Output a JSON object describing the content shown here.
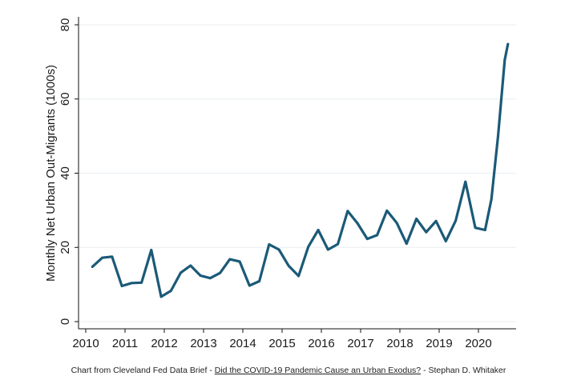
{
  "chart_data": {
    "type": "line",
    "title": "",
    "xlabel": "",
    "ylabel": "Monthly Net Urban Out-Migrants (1000s)",
    "xlim": [
      2010,
      2020.8
    ],
    "ylim": [
      0,
      80
    ],
    "xticks": [
      2010,
      2011,
      2012,
      2013,
      2014,
      2015,
      2016,
      2017,
      2018,
      2019,
      2020
    ],
    "yticks": [
      0,
      20,
      40,
      60,
      80
    ],
    "xtick_labels": [
      "2010",
      "2011",
      "2012",
      "2013",
      "2014",
      "2015",
      "2016",
      "2017",
      "2018",
      "2019",
      "2020"
    ],
    "ytick_labels": [
      "0",
      "20",
      "40",
      "60",
      "80"
    ],
    "grid": "horizontal",
    "line_color": "#1b5a78",
    "x": [
      2010.17,
      2010.42,
      2010.67,
      2010.92,
      2011.17,
      2011.42,
      2011.67,
      2011.92,
      2012.17,
      2012.42,
      2012.67,
      2012.92,
      2013.17,
      2013.42,
      2013.67,
      2013.92,
      2014.17,
      2014.42,
      2014.67,
      2014.92,
      2015.17,
      2015.42,
      2015.67,
      2015.92,
      2016.17,
      2016.42,
      2016.67,
      2016.92,
      2017.17,
      2017.42,
      2017.67,
      2017.92,
      2018.17,
      2018.42,
      2018.67,
      2018.92,
      2019.17,
      2019.42,
      2019.67,
      2019.92,
      2020.17,
      2020.33,
      2020.5,
      2020.67,
      2020.75
    ],
    "series": [
      {
        "name": "",
        "values": [
          14.8,
          17.2,
          17.5,
          9.6,
          10.4,
          10.5,
          19.3,
          6.7,
          8.3,
          13.2,
          15.1,
          12.4,
          11.7,
          13.1,
          16.8,
          16.2,
          9.7,
          10.9,
          20.8,
          19.4,
          15.0,
          12.3,
          20.2,
          24.7,
          19.4,
          20.9,
          29.8,
          26.5,
          22.3,
          23.3,
          29.9,
          26.6,
          21.0,
          27.7,
          24.1,
          27.1,
          21.7,
          27.2,
          37.7,
          25.3,
          24.7,
          33.0,
          50.0,
          70.5,
          74.8
        ]
      }
    ]
  },
  "caption": {
    "prefix": "Chart from Cleveland Fed Data Brief - ",
    "link_text": "Did the COVID-19 Pandemic Cause an Urban Exodus?",
    "suffix": " - Stephan D. Whitaker"
  }
}
